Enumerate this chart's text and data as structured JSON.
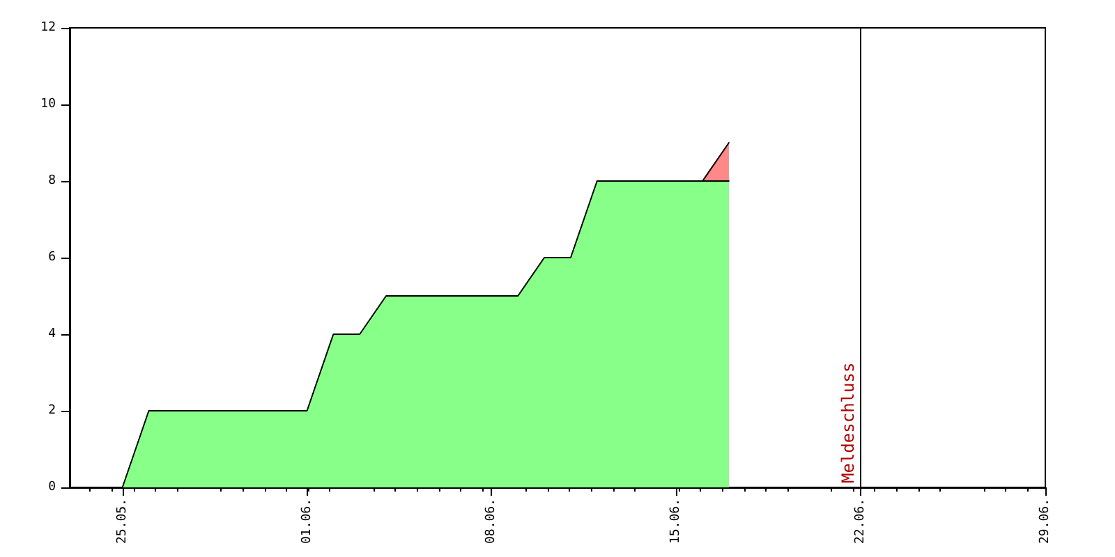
{
  "chart_data": {
    "type": "area",
    "x": [
      "--05-25",
      "--05-26",
      "--06-01",
      "--06-02",
      "--06-03",
      "--06-04",
      "--06-09",
      "--06-10",
      "--06-11",
      "--06-12",
      "--06-16",
      "--06-17"
    ],
    "series": [
      {
        "color": "#88ff88",
        "values": [
          0,
          2,
          2,
          4,
          4,
          5,
          5,
          6,
          6,
          8,
          8,
          8
        ]
      },
      {
        "color": "#ff8888",
        "x": [
          "--06-16",
          "--06-17"
        ],
        "values": [
          8,
          9
        ]
      }
    ],
    "xlim": [
      "--05-23",
      "--06-29"
    ],
    "xticks": [
      {
        "value": "--05-25",
        "label": "25.05."
      },
      {
        "value": "--06-01",
        "label": "01.06."
      },
      {
        "value": "--06-08",
        "label": "08.06."
      },
      {
        "value": "--06-15",
        "label": "15.06."
      },
      {
        "value": "--06-22",
        "label": "22.06."
      },
      {
        "value": "--06-29",
        "label": "29.06."
      }
    ],
    "ylim": [
      0,
      12
    ],
    "yticks": [
      0,
      2,
      4,
      6,
      8,
      10,
      12
    ],
    "grid": false,
    "marker": "none",
    "line_style": "solid",
    "ref_lines": [
      {
        "axis": "x",
        "value": "--06-22",
        "label": "Meldeschluss",
        "color": "#000000"
      }
    ]
  }
}
